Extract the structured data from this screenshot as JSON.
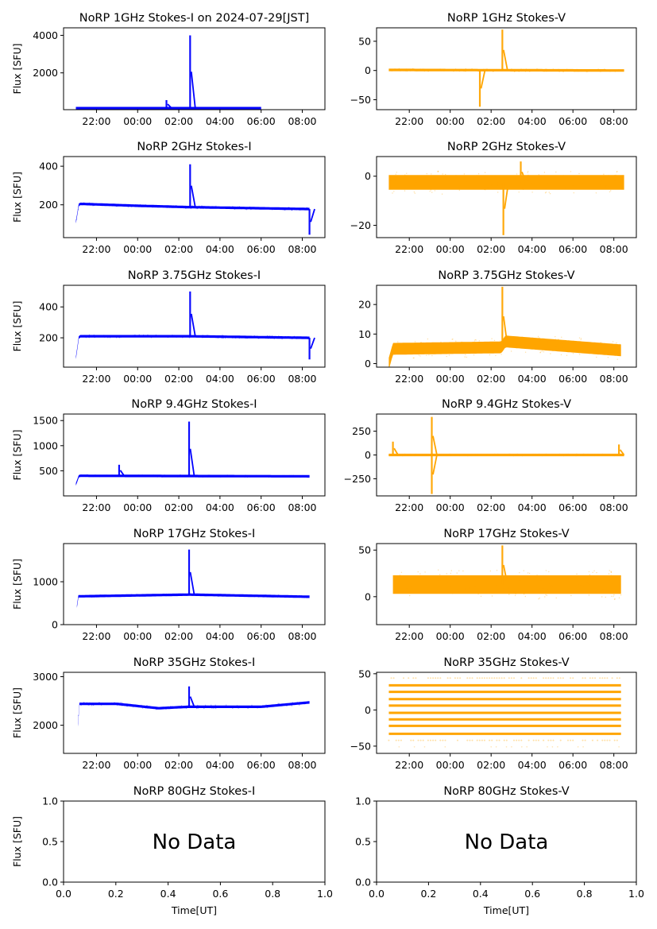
{
  "figure": {
    "x_time_ticks": [
      "22:00",
      "00:00",
      "02:00",
      "04:00",
      "06:00",
      "08:00"
    ],
    "xlabel_bottom": "Time[UT]",
    "ylabel": "Flux [SFU]",
    "colors": {
      "stokes_i": "#0000ff",
      "stokes_v": "#ffa500",
      "axes": "#000000"
    }
  },
  "chart_data": [
    {
      "type": "scatter",
      "panel": "1GHz-I",
      "title": "NoRP 1GHz Stokes-I on 2024-07-29[JST]",
      "ylabel": "Flux [SFU]",
      "xlabel": "",
      "xlim_hours": [
        20.4,
        33.1
      ],
      "ylim": [
        40,
        4400
      ],
      "yticks": [
        2000,
        4000
      ],
      "ytick_labels": [
        "2000",
        "4000"
      ],
      "data_span_hours": [
        21.0,
        30.0
      ],
      "baseline": [
        [
          21.0,
          120
        ],
        [
          30.0,
          120
        ]
      ],
      "spikes": [
        {
          "t": 25.4,
          "peak": 550
        },
        {
          "t": 26.55,
          "peak": 4000
        }
      ],
      "band": 35,
      "color": "#0000ff"
    },
    {
      "type": "scatter",
      "panel": "1GHz-V",
      "title": "NoRP 1GHz Stokes-V",
      "xlim_hours": [
        20.4,
        33.1
      ],
      "ylim": [
        -67,
        73
      ],
      "yticks": [
        -50,
        0,
        50
      ],
      "ytick_labels": [
        "−50",
        "0",
        "50"
      ],
      "data_span_hours": [
        21.0,
        32.5
      ],
      "baseline": [
        [
          21.0,
          1
        ],
        [
          32.5,
          0
        ]
      ],
      "spikes": [
        {
          "t": 25.45,
          "peak": -62
        },
        {
          "t": 26.55,
          "peak": 70
        }
      ],
      "band": 3,
      "color": "#ffa500"
    },
    {
      "type": "scatter",
      "panel": "2GHz-I",
      "title": "NoRP 2GHz Stokes-I",
      "ylabel": "Flux [SFU]",
      "xlim_hours": [
        20.4,
        33.1
      ],
      "ylim": [
        30,
        450
      ],
      "yticks": [
        200,
        400
      ],
      "ytick_labels": [
        "200",
        "400"
      ],
      "data_span_hours": [
        21.0,
        32.35
      ],
      "baseline": [
        [
          21.0,
          110
        ],
        [
          21.15,
          205
        ],
        [
          24.0,
          195
        ],
        [
          26.5,
          188
        ],
        [
          32.35,
          178
        ]
      ],
      "spikes": [
        {
          "t": 26.55,
          "peak": 410
        },
        {
          "t": 32.35,
          "peak": 45
        }
      ],
      "band": 10,
      "color": "#0000ff"
    },
    {
      "type": "scatter",
      "panel": "2GHz-V",
      "title": "NoRP 2GHz Stokes-V",
      "xlim_hours": [
        20.4,
        33.1
      ],
      "ylim": [
        -25,
        8
      ],
      "yticks": [
        -20,
        0
      ],
      "ytick_labels": [
        "−20",
        "0"
      ],
      "data_span_hours": [
        21.0,
        32.5
      ],
      "baseline": [
        [
          21.0,
          -2.5
        ],
        [
          32.5,
          -2.5
        ]
      ],
      "spikes": [
        {
          "t": 26.6,
          "peak": -24
        },
        {
          "t": 27.45,
          "peak": 6
        }
      ],
      "band": 6,
      "color": "#ffa500"
    },
    {
      "type": "scatter",
      "panel": "3.75GHz-I",
      "title": "NoRP 3.75GHz Stokes-I",
      "ylabel": "Flux [SFU]",
      "xlim_hours": [
        20.4,
        33.1
      ],
      "ylim": [
        10,
        540
      ],
      "yticks": [
        200,
        400
      ],
      "ytick_labels": [
        "200",
        "400"
      ],
      "data_span_hours": [
        21.0,
        32.35
      ],
      "baseline": [
        [
          21.0,
          70
        ],
        [
          21.15,
          210
        ],
        [
          26.5,
          210
        ],
        [
          32.35,
          200
        ]
      ],
      "spikes": [
        {
          "t": 26.55,
          "peak": 500
        },
        {
          "t": 32.35,
          "peak": 60
        }
      ],
      "band": 12,
      "color": "#0000ff"
    },
    {
      "type": "scatter",
      "panel": "3.75GHz-V",
      "title": "NoRP 3.75GHz Stokes-V",
      "xlim_hours": [
        20.4,
        33.1
      ],
      "ylim": [
        -1.2,
        26.5
      ],
      "yticks": [
        0,
        10,
        20
      ],
      "ytick_labels": [
        "0",
        "10",
        "20"
      ],
      "data_span_hours": [
        21.0,
        32.35
      ],
      "baseline": [
        [
          21.0,
          0
        ],
        [
          21.2,
          5
        ],
        [
          26.5,
          5.5
        ],
        [
          26.7,
          7.5
        ],
        [
          32.35,
          4.5
        ]
      ],
      "spikes": [
        {
          "t": 26.55,
          "peak": 26
        }
      ],
      "band": 4,
      "color": "#ffa500"
    },
    {
      "type": "scatter",
      "panel": "9.4GHz-I",
      "title": "NoRP 9.4GHz Stokes-I",
      "ylabel": "Flux [SFU]",
      "xlim_hours": [
        20.4,
        33.1
      ],
      "ylim": [
        0,
        1630
      ],
      "yticks": [
        500,
        1000,
        1500
      ],
      "ytick_labels": [
        "500",
        "1000",
        "1500"
      ],
      "data_span_hours": [
        21.0,
        32.35
      ],
      "baseline": [
        [
          21.0,
          230
        ],
        [
          21.15,
          400
        ],
        [
          32.35,
          390
        ]
      ],
      "spikes": [
        {
          "t": 23.1,
          "peak": 620
        },
        {
          "t": 26.5,
          "peak": 1480
        }
      ],
      "band": 25,
      "color": "#0000ff"
    },
    {
      "type": "scatter",
      "panel": "9.4GHz-V",
      "title": "NoRP 9.4GHz Stokes-V",
      "xlim_hours": [
        20.4,
        33.1
      ],
      "ylim": [
        -430,
        430
      ],
      "yticks": [
        -250,
        0,
        250
      ],
      "ytick_labels": [
        "−250",
        "0",
        "250"
      ],
      "data_span_hours": [
        21.0,
        32.5
      ],
      "baseline": [
        [
          21.0,
          0
        ],
        [
          32.5,
          0
        ]
      ],
      "spikes": [
        {
          "t": 23.1,
          "peak": 400
        },
        {
          "t": 23.1,
          "peak": -410
        },
        {
          "t": 21.2,
          "peak": 140
        },
        {
          "t": 32.25,
          "peak": 110
        }
      ],
      "band": 12,
      "color": "#ffa500"
    },
    {
      "type": "scatter",
      "panel": "17GHz-I",
      "title": "NoRP 17GHz Stokes-I",
      "ylabel": "Flux [SFU]",
      "xlim_hours": [
        20.4,
        33.1
      ],
      "ylim": [
        0,
        1890
      ],
      "yticks": [
        0,
        1000
      ],
      "ytick_labels": [
        "0",
        "1000"
      ],
      "data_span_hours": [
        21.05,
        32.35
      ],
      "baseline": [
        [
          21.05,
          420
        ],
        [
          21.1,
          660
        ],
        [
          26.5,
          700
        ],
        [
          32.35,
          650
        ]
      ],
      "spikes": [
        {
          "t": 26.5,
          "peak": 1750
        }
      ],
      "band": 30,
      "color": "#0000ff"
    },
    {
      "type": "scatter",
      "panel": "17GHz-V",
      "title": "NoRP 17GHz Stokes-V",
      "xlim_hours": [
        20.4,
        33.1
      ],
      "ylim": [
        -30,
        57
      ],
      "yticks": [
        0,
        50
      ],
      "ytick_labels": [
        "0",
        "50"
      ],
      "data_span_hours": [
        21.2,
        32.35
      ],
      "baseline": [
        [
          21.2,
          13
        ],
        [
          32.35,
          13
        ]
      ],
      "spikes": [
        {
          "t": 26.55,
          "peak": 55
        }
      ],
      "band": 20,
      "color": "#ffa500"
    },
    {
      "type": "scatter",
      "panel": "35GHz-I",
      "title": "NoRP 35GHz Stokes-I",
      "ylabel": "Flux [SFU]",
      "xlim_hours": [
        20.4,
        33.1
      ],
      "ylim": [
        1420,
        3090
      ],
      "yticks": [
        2000,
        3000
      ],
      "ytick_labels": [
        "2000",
        "3000"
      ],
      "data_span_hours": [
        21.1,
        32.35
      ],
      "baseline": [
        [
          21.1,
          2000
        ],
        [
          21.15,
          2440
        ],
        [
          23.0,
          2440
        ],
        [
          25.0,
          2350
        ],
        [
          26.5,
          2380
        ],
        [
          28.0,
          2380
        ],
        [
          30.0,
          2380
        ],
        [
          32.35,
          2470
        ]
      ],
      "spikes": [
        {
          "t": 26.5,
          "peak": 2800
        }
      ],
      "band": 45,
      "color": "#0000ff"
    },
    {
      "type": "scatter",
      "panel": "35GHz-V",
      "title": "NoRP 35GHz Stokes-V",
      "xlim_hours": [
        20.4,
        33.1
      ],
      "ylim": [
        -60,
        52
      ],
      "yticks": [
        -50,
        0,
        50
      ],
      "ytick_labels": [
        "−50",
        "0",
        "50"
      ],
      "data_span_hours": [
        21.0,
        32.35
      ],
      "quantized_levels": [
        -42,
        -33,
        -22,
        -13,
        -4,
        6,
        15,
        25,
        34,
        44
      ],
      "color": "#ffa500"
    },
    {
      "type": "scatter",
      "panel": "80GHz-I",
      "title": "NoRP 80GHz Stokes-I",
      "ylabel": "Flux [SFU]",
      "xlabel": "Time[UT]",
      "xlim": [
        0,
        1
      ],
      "ylim": [
        0,
        1
      ],
      "xticks": [
        "0.0",
        "0.2",
        "0.4",
        "0.6",
        "0.8",
        "1.0"
      ],
      "yticks": [
        "0.0",
        "0.5",
        "1.0"
      ],
      "annotation": "No Data"
    },
    {
      "type": "scatter",
      "panel": "80GHz-V",
      "title": "NoRP 80GHz Stokes-V",
      "xlabel": "Time[UT]",
      "xlim": [
        0,
        1
      ],
      "ylim": [
        0,
        1
      ],
      "xticks": [
        "0.0",
        "0.2",
        "0.4",
        "0.6",
        "0.8",
        "1.0"
      ],
      "yticks": [
        "0.0",
        "0.5",
        "1.0"
      ],
      "annotation": "No Data"
    }
  ]
}
